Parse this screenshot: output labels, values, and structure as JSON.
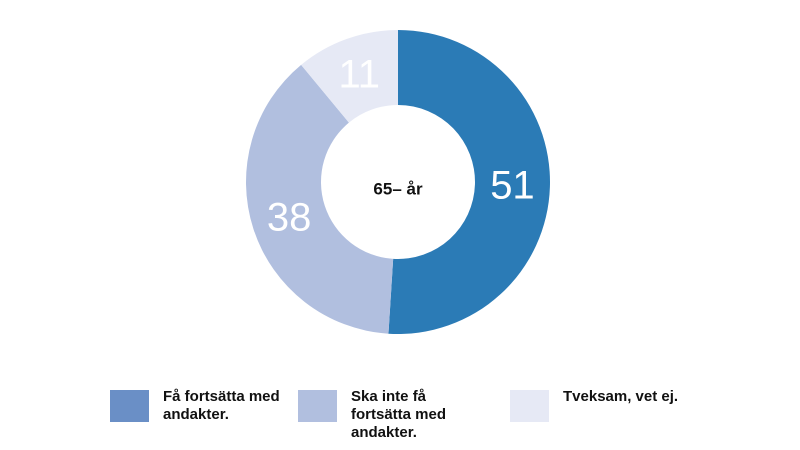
{
  "chart_data": {
    "type": "pie",
    "donut": true,
    "center_label": "65– år",
    "categories": [
      "Få fortsätta med andakter.",
      "Ska inte få fortsätta med andakter.",
      "Tveksam, vet ej."
    ],
    "values": [
      51,
      38,
      11
    ],
    "data_labels": [
      "51",
      "38",
      "11"
    ],
    "slice_colors": [
      "#2b7bb6",
      "#b1bfdf",
      "#e6e9f5"
    ],
    "legend": {
      "placement": "bottom",
      "items": [
        {
          "label": "Få fortsätta med andakter.",
          "color": "#6a8fc6"
        },
        {
          "label": "Ska inte få fortsätta med andakter.",
          "color": "#b1bfdf"
        },
        {
          "label": "Tveksam, vet ej.",
          "color": "#e6e9f5"
        }
      ]
    }
  }
}
